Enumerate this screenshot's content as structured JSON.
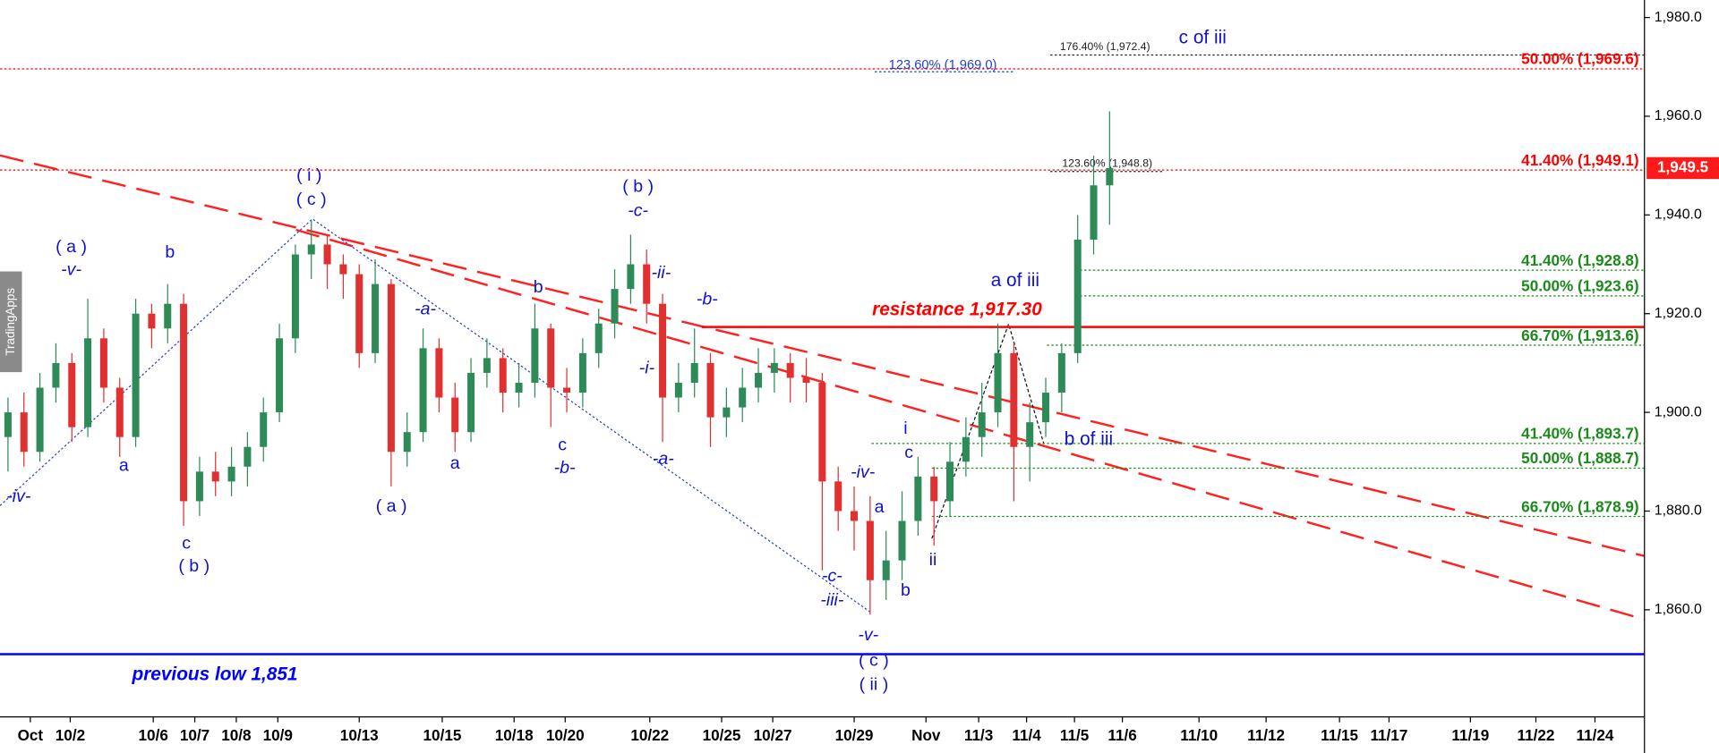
{
  "chart_data": {
    "type": "candlestick",
    "brand": "TradingApps",
    "up_color": "#2e8b57",
    "down_color": "#e03030",
    "x": [
      0,
      1,
      2,
      3,
      4,
      5,
      6,
      7,
      8,
      9,
      10,
      11,
      12,
      13,
      14,
      15,
      16,
      17,
      18,
      19,
      20,
      21,
      22,
      23,
      24,
      25,
      26,
      27,
      28,
      29,
      30,
      31,
      32,
      33,
      34,
      35,
      36,
      37,
      38,
      39,
      40,
      41,
      42,
      43,
      44,
      45,
      46,
      47,
      48,
      49,
      50,
      51,
      52,
      53,
      54,
      55,
      56,
      57,
      58,
      59,
      60,
      61,
      62,
      63,
      64,
      65,
      66,
      67,
      68,
      69
    ],
    "open": [
      1895,
      1900,
      1892,
      1905,
      1910,
      1897,
      1915,
      1905,
      1895,
      1920,
      1917,
      1922,
      1882,
      1888,
      1886,
      1889,
      1893,
      1900,
      1915,
      1932,
      1934,
      1930,
      1928,
      1912,
      1926,
      1892,
      1896,
      1913,
      1903,
      1896,
      1908,
      1911,
      1904,
      1906,
      1917,
      1905,
      1904,
      1912,
      1918,
      1925,
      1930,
      1922,
      1903,
      1906,
      1910,
      1899,
      1901,
      1905,
      1908,
      1910,
      1907,
      1906,
      1886,
      1880,
      1878,
      1866,
      1870,
      1878,
      1887,
      1882,
      1890,
      1895,
      1900,
      1912,
      1893,
      1898,
      1904,
      1912,
      1935,
      1946
    ],
    "high": [
      1903,
      1904,
      1908,
      1914,
      1912,
      1923,
      1917,
      1907,
      1923,
      1922,
      1926,
      1924,
      1891,
      1892,
      1893,
      1896,
      1903,
      1918,
      1934,
      1939,
      1936,
      1932,
      1930,
      1931,
      1927,
      1900,
      1917,
      1915,
      1906,
      1911,
      1915,
      1913,
      1910,
      1922,
      1918,
      1909,
      1915,
      1921,
      1929,
      1936,
      1933,
      1924,
      1910,
      1917,
      1912,
      1905,
      1909,
      1913,
      1913,
      1912,
      1911,
      1908,
      1889,
      1885,
      1883,
      1876,
      1884,
      1891,
      1889,
      1894,
      1899,
      1906,
      1918,
      1914,
      1902,
      1907,
      1914,
      1940,
      1952,
      1961
    ],
    "low": [
      1888,
      1889,
      1890,
      1902,
      1894,
      1895,
      1902,
      1891,
      1893,
      1913,
      1914,
      1877,
      1879,
      1883,
      1883,
      1885,
      1890,
      1898,
      1912,
      1927,
      1925,
      1923,
      1909,
      1910,
      1885,
      1889,
      1894,
      1900,
      1892,
      1894,
      1905,
      1900,
      1901,
      1903,
      1897,
      1900,
      1901,
      1909,
      1915,
      1922,
      1918,
      1894,
      1900,
      1903,
      1893,
      1895,
      1898,
      1902,
      1904,
      1902,
      1902,
      1868,
      1876,
      1872,
      1859,
      1862,
      1866,
      1875,
      1873,
      1879,
      1887,
      1891,
      1897,
      1882,
      1886,
      1895,
      1900,
      1910,
      1932,
      1938
    ],
    "close": [
      1900,
      1892,
      1905,
      1910,
      1897,
      1915,
      1905,
      1895,
      1920,
      1917,
      1922,
      1882,
      1888,
      1886,
      1889,
      1893,
      1900,
      1915,
      1932,
      1934,
      1930,
      1928,
      1912,
      1926,
      1892,
      1896,
      1913,
      1903,
      1896,
      1908,
      1911,
      1904,
      1906,
      1917,
      1905,
      1904,
      1912,
      1918,
      1925,
      1930,
      1922,
      1903,
      1906,
      1910,
      1899,
      1901,
      1905,
      1908,
      1910,
      1907,
      1906,
      1886,
      1880,
      1878,
      1866,
      1870,
      1878,
      1887,
      1882,
      1890,
      1895,
      1900,
      1912,
      1893,
      1898,
      1904,
      1912,
      1935,
      1946,
      1949.5
    ],
    "last_label": "1,949.5",
    "xlim": [
      -0.5,
      102.5
    ],
    "xticks": [
      {
        "value": 1.4,
        "label": "Oct"
      },
      {
        "value": 3.9,
        "label": "10/2"
      },
      {
        "value": 9.1,
        "label": "10/6"
      },
      {
        "value": 11.7,
        "label": "10/7"
      },
      {
        "value": 14.3,
        "label": "10/8"
      },
      {
        "value": 16.9,
        "label": "10/9"
      },
      {
        "value": 22.0,
        "label": "10/13"
      },
      {
        "value": 27.2,
        "label": "10/15"
      },
      {
        "value": 31.7,
        "label": "10/18"
      },
      {
        "value": 34.9,
        "label": "10/20"
      },
      {
        "value": 40.2,
        "label": "10/22"
      },
      {
        "value": 44.7,
        "label": "10/25"
      },
      {
        "value": 47.9,
        "label": "10/27"
      },
      {
        "value": 53.0,
        "label": "10/29"
      },
      {
        "value": 57.5,
        "label": "Nov"
      },
      {
        "value": 60.8,
        "label": "11/3"
      },
      {
        "value": 63.8,
        "label": "11/4"
      },
      {
        "value": 66.8,
        "label": "11/5"
      },
      {
        "value": 69.8,
        "label": "11/6"
      },
      {
        "value": 74.6,
        "label": "11/10"
      },
      {
        "value": 78.8,
        "label": "11/12"
      },
      {
        "value": 83.4,
        "label": "11/15"
      },
      {
        "value": 86.5,
        "label": "11/17"
      },
      {
        "value": 91.6,
        "label": "11/19"
      },
      {
        "value": 95.7,
        "label": "11/22"
      },
      {
        "value": 99.4,
        "label": "11/24"
      }
    ],
    "ylim": [
      1838.3,
      1983.55
    ],
    "yticks": [
      {
        "value": 1860,
        "label": "1,860.0"
      },
      {
        "value": 1880,
        "label": "1,880.0"
      },
      {
        "value": 1900,
        "label": "1,900.0"
      },
      {
        "value": 1920,
        "label": "1,920.0"
      },
      {
        "value": 1940,
        "label": "1,940.0"
      },
      {
        "value": 1960,
        "label": "1,960.0"
      },
      {
        "value": 1980,
        "label": "1,980.0"
      }
    ],
    "hlines": [
      {
        "label": "50.00% (1,969.6)",
        "value": 1969.6,
        "color": "#ff0000",
        "style": "dotted"
      },
      {
        "label": "41.40% (1,949.1)",
        "value": 1949.1,
        "color": "#ff0000",
        "style": "dotted"
      },
      {
        "label": "41.40% (1,928.8)",
        "value": 1928.8,
        "color": "#1a8a1a",
        "style": "dotted"
      },
      {
        "label": "50.00% (1,923.6)",
        "value": 1923.6,
        "color": "#1a8a1a",
        "style": "dotted"
      },
      {
        "label": "66.70% (1,913.6)",
        "value": 1913.6,
        "color": "#1a8a1a",
        "style": "dotted"
      },
      {
        "label": "41.40% (1,893.7)",
        "value": 1893.7,
        "color": "#1a8a1a",
        "style": "dotted"
      },
      {
        "label": "50.00% (1,888.7)",
        "value": 1888.7,
        "color": "#1a8a1a",
        "style": "dotted"
      },
      {
        "label": "66.70% (1,878.9)",
        "value": 1878.9,
        "color": "#1a8a1a",
        "style": "dotted"
      },
      {
        "label": "123.60% (1,969.0)",
        "value": 1969.0,
        "color": "#1f3fd6",
        "style": "dotted"
      },
      {
        "label": "176.40% (1,972.4)",
        "value": 1972.4,
        "color": "#222222",
        "style": "dotted"
      },
      {
        "label": "123.60% (1,948.8)",
        "value": 1948.8,
        "color": "#222222",
        "style": "dotted"
      },
      {
        "label": "resistance 1,917.30",
        "value": 1917.3,
        "color": "#ff0000",
        "style": "solid"
      },
      {
        "label": "previous low 1,851",
        "value": 1851,
        "color": "#0000ff",
        "style": "solid"
      }
    ],
    "annotations": [
      "( a )",
      "-v-",
      "b",
      "a",
      "-iv-",
      "c",
      "( b )",
      "( i )",
      "( c )",
      "( a )",
      "a",
      "-a-",
      "b",
      "c",
      "-b-",
      "( b )",
      "-c-",
      "-ii-",
      "-b-",
      "-i-",
      "-a-",
      "-iv-",
      "a",
      "i",
      "c",
      "ii",
      "b",
      "-c-",
      "-iii-",
      "-v-",
      "( c )",
      "( ii )",
      "a of iii",
      "b of iii",
      "c of iii"
    ]
  }
}
